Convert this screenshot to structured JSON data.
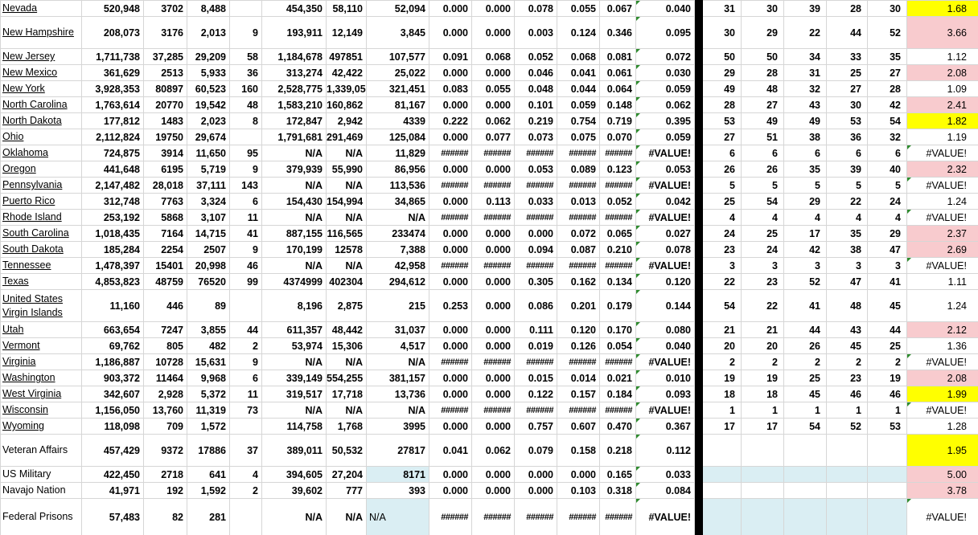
{
  "palette": {
    "highlight_yellow": "#FFFF00",
    "highlight_pink": "#F8CBCE",
    "highlight_blue": "#DAEEF3",
    "separator_black": "#000000",
    "gridline": "#D6D6D6",
    "error_green": "#2E8B2E"
  },
  "error_value": "#VALUE!",
  "overflow_value": "######",
  "rows": [
    {
      "state": "Nevada",
      "underline": true,
      "tall": false,
      "t_fill": "yellow",
      "values": [
        "520,948",
        "3702",
        "8,488",
        "",
        "454,350",
        "58,110",
        "52,094",
        "0.000",
        "0.000",
        "0.078",
        "0.055",
        "0.067",
        "0.040",
        "31",
        "30",
        "39",
        "28",
        "30",
        "1.68"
      ]
    },
    {
      "state": "New Hampshire",
      "underline": true,
      "tall": true,
      "t_fill": "pink",
      "values": [
        "208,073",
        "3176",
        "2,013",
        "9",
        "193,911",
        "12,149",
        "3,845",
        "0.000",
        "0.000",
        "0.003",
        "0.124",
        "0.346",
        "0.095",
        "30",
        "29",
        "22",
        "44",
        "52",
        "3.66"
      ]
    },
    {
      "state": "New Jersey",
      "underline": true,
      "tall": false,
      "t_fill": null,
      "values": [
        "1,711,738",
        "37,285",
        "29,209",
        "58",
        "1,184,678",
        "497851",
        "107,577",
        "0.091",
        "0.068",
        "0.052",
        "0.068",
        "0.081",
        "0.072",
        "50",
        "50",
        "34",
        "33",
        "35",
        "1.12"
      ]
    },
    {
      "state": "New Mexico",
      "underline": true,
      "tall": false,
      "t_fill": "pink",
      "values": [
        "361,629",
        "2513",
        "5,933",
        "36",
        "313,274",
        "42,422",
        "25,022",
        "0.000",
        "0.000",
        "0.046",
        "0.041",
        "0.061",
        "0.030",
        "29",
        "28",
        "31",
        "25",
        "27",
        "2.08"
      ]
    },
    {
      "state": "New York",
      "underline": true,
      "tall": false,
      "t_fill": null,
      "values": [
        "3,928,353",
        "80897",
        "60,523",
        "160",
        "2,528,775",
        "1,339,055",
        "321,451",
        "0.083",
        "0.055",
        "0.048",
        "0.044",
        "0.064",
        "0.059",
        "49",
        "48",
        "32",
        "27",
        "28",
        "1.09"
      ]
    },
    {
      "state": "North Carolina",
      "underline": true,
      "tall": false,
      "t_fill": "pink",
      "values": [
        "1,763,614",
        "20770",
        "19,542",
        "48",
        "1,583,210",
        "160,862",
        "81,167",
        "0.000",
        "0.000",
        "0.101",
        "0.059",
        "0.148",
        "0.062",
        "28",
        "27",
        "43",
        "30",
        "42",
        "2.41"
      ]
    },
    {
      "state": "North Dakota",
      "underline": true,
      "tall": false,
      "t_fill": "yellow",
      "values": [
        "177,812",
        "1483",
        "2,023",
        "8",
        "172,847",
        "2,942",
        "4339",
        "0.222",
        "0.062",
        "0.219",
        "0.754",
        "0.719",
        "0.395",
        "53",
        "49",
        "49",
        "53",
        "54",
        "1.82"
      ]
    },
    {
      "state": "Ohio",
      "underline": true,
      "tall": false,
      "t_fill": null,
      "values": [
        "2,112,824",
        "19750",
        "29,674",
        "",
        "1,791,681",
        "291,469",
        "125,084",
        "0.000",
        "0.077",
        "0.073",
        "0.075",
        "0.070",
        "0.059",
        "27",
        "51",
        "38",
        "36",
        "32",
        "1.19"
      ]
    },
    {
      "state": "Oklahoma",
      "underline": true,
      "tall": false,
      "t_fill": null,
      "values": [
        "724,875",
        "3914",
        "11,650",
        "95",
        "N/A",
        "N/A",
        "11,829",
        "######",
        "######",
        "######",
        "######",
        "######",
        "#VALUE!",
        "6",
        "6",
        "6",
        "6",
        "6",
        "#VALUE!"
      ]
    },
    {
      "state": "Oregon",
      "underline": true,
      "tall": false,
      "t_fill": "pink",
      "values": [
        "441,648",
        "6195",
        "5,719",
        "9",
        "379,939",
        "55,990",
        "86,956",
        "0.000",
        "0.000",
        "0.053",
        "0.089",
        "0.123",
        "0.053",
        "26",
        "26",
        "35",
        "39",
        "40",
        "2.32"
      ]
    },
    {
      "state": "Pennsylvania",
      "underline": true,
      "tall": false,
      "t_fill": null,
      "values": [
        "2,147,482",
        "28,018",
        "37,111",
        "143",
        "N/A",
        "N/A",
        "113,536",
        "######",
        "######",
        "######",
        "######",
        "######",
        "#VALUE!",
        "5",
        "5",
        "5",
        "5",
        "5",
        "#VALUE!"
      ]
    },
    {
      "state": "Puerto Rico",
      "underline": true,
      "tall": false,
      "t_fill": null,
      "values": [
        "312,748",
        "7763",
        "3,324",
        "6",
        "154,430",
        "154,994",
        "34,865",
        "0.000",
        "0.113",
        "0.033",
        "0.013",
        "0.052",
        "0.042",
        "25",
        "54",
        "29",
        "22",
        "24",
        "1.24"
      ]
    },
    {
      "state": "Rhode Island",
      "underline": true,
      "tall": false,
      "t_fill": null,
      "values": [
        "253,192",
        "5868",
        "3,107",
        "11",
        "N/A",
        "N/A",
        "N/A",
        "######",
        "######",
        "######",
        "######",
        "######",
        "#VALUE!",
        "4",
        "4",
        "4",
        "4",
        "4",
        "#VALUE!"
      ]
    },
    {
      "state": "South Carolina",
      "underline": true,
      "tall": false,
      "t_fill": "pink",
      "values": [
        "1,018,435",
        "7164",
        "14,715",
        "41",
        "887,155",
        "116,565",
        "233474",
        "0.000",
        "0.000",
        "0.000",
        "0.072",
        "0.065",
        "0.027",
        "24",
        "25",
        "17",
        "35",
        "29",
        "2.37"
      ]
    },
    {
      "state": "South Dakota",
      "underline": true,
      "tall": false,
      "t_fill": "pink",
      "values": [
        "185,284",
        "2254",
        "2507",
        "9",
        "170,199",
        "12578",
        "7,388",
        "0.000",
        "0.000",
        "0.094",
        "0.087",
        "0.210",
        "0.078",
        "23",
        "24",
        "42",
        "38",
        "47",
        "2.69"
      ]
    },
    {
      "state": "Tennessee",
      "underline": true,
      "tall": false,
      "t_fill": null,
      "values": [
        "1,478,397",
        "15401",
        "20,998",
        "46",
        "N/A",
        "N/A",
        "42,958",
        "######",
        "######",
        "######",
        "######",
        "######",
        "#VALUE!",
        "3",
        "3",
        "3",
        "3",
        "3",
        "#VALUE!"
      ]
    },
    {
      "state": "Texas",
      "underline": true,
      "tall": false,
      "t_fill": null,
      "values": [
        "4,853,823",
        "48759",
        "76520",
        "99",
        "4374999",
        "402304",
        "294,612",
        "0.000",
        "0.000",
        "0.305",
        "0.162",
        "0.134",
        "0.120",
        "22",
        "23",
        "52",
        "47",
        "41",
        "1.11"
      ]
    },
    {
      "state": "United States Virgin Islands",
      "underline": true,
      "tall": true,
      "t_fill": null,
      "values": [
        "11,160",
        "446",
        "89",
        "",
        "8,196",
        "2,875",
        "215",
        "0.253",
        "0.000",
        "0.086",
        "0.201",
        "0.179",
        "0.144",
        "54",
        "22",
        "41",
        "48",
        "45",
        "1.24"
      ]
    },
    {
      "state": "Utah",
      "underline": true,
      "tall": false,
      "t_fill": "pink",
      "values": [
        "663,654",
        "7247",
        "3,855",
        "44",
        "611,357",
        "48,442",
        "31,037",
        "0.000",
        "0.000",
        "0.111",
        "0.120",
        "0.170",
        "0.080",
        "21",
        "21",
        "44",
        "43",
        "44",
        "2.12"
      ]
    },
    {
      "state": "Vermont",
      "underline": true,
      "tall": false,
      "t_fill": null,
      "values": [
        "69,762",
        "805",
        "482",
        "2",
        "53,974",
        "15,306",
        "4,517",
        "0.000",
        "0.000",
        "0.019",
        "0.126",
        "0.054",
        "0.040",
        "20",
        "20",
        "26",
        "45",
        "25",
        "1.36"
      ]
    },
    {
      "state": "Virginia",
      "underline": true,
      "tall": false,
      "t_fill": null,
      "values": [
        "1,186,887",
        "10728",
        "15,631",
        "9",
        "N/A",
        "N/A",
        "N/A",
        "######",
        "######",
        "######",
        "######",
        "######",
        "#VALUE!",
        "2",
        "2",
        "2",
        "2",
        "2",
        "#VALUE!"
      ]
    },
    {
      "state": "Washington",
      "underline": true,
      "tall": false,
      "t_fill": "pink",
      "values": [
        "903,372",
        "11464",
        "9,968",
        "6",
        "339,149",
        "554,255",
        "381,157",
        "0.000",
        "0.000",
        "0.015",
        "0.014",
        "0.021",
        "0.010",
        "19",
        "19",
        "25",
        "23",
        "19",
        "2.08"
      ]
    },
    {
      "state": "West Virginia",
      "underline": true,
      "tall": false,
      "t_fill": "yellow",
      "values": [
        "342,607",
        "2,928",
        "5,372",
        "11",
        "319,517",
        "17,718",
        "13,736",
        "0.000",
        "0.000",
        "0.122",
        "0.157",
        "0.184",
        "0.093",
        "18",
        "18",
        "45",
        "46",
        "46",
        "1.99"
      ]
    },
    {
      "state": "Wisconsin",
      "underline": true,
      "tall": false,
      "t_fill": null,
      "values": [
        "1,156,050",
        "13,760",
        "11,319",
        "73",
        "N/A",
        "N/A",
        "N/A",
        "######",
        "######",
        "######",
        "######",
        "######",
        "#VALUE!",
        "1",
        "1",
        "1",
        "1",
        "1",
        "#VALUE!"
      ]
    },
    {
      "state": "Wyoming",
      "underline": true,
      "tall": false,
      "t_fill": null,
      "values": [
        "118,098",
        "709",
        "1,572",
        "",
        "114,758",
        "1,768",
        "3995",
        "0.000",
        "0.000",
        "0.757",
        "0.607",
        "0.470",
        "0.367",
        "17",
        "17",
        "54",
        "52",
        "53",
        "1.28"
      ]
    },
    {
      "state": "Veteran Affairs",
      "underline": false,
      "tall": true,
      "t_fill": "yellow",
      "values": [
        "457,429",
        "9372",
        "17886",
        "37",
        "389,011",
        "50,532",
        "27817",
        "0.041",
        "0.062",
        "0.079",
        "0.158",
        "0.218",
        "0.112",
        "",
        "",
        "",
        "",
        "",
        "1.95"
      ]
    },
    {
      "state": "US Military",
      "underline": false,
      "tall": false,
      "t_fill": "pink",
      "h_fill": "blue",
      "ranks_fill": "blue",
      "values": [
        "422,450",
        "2718",
        "641",
        "4",
        "394,605",
        "27,204",
        "8171",
        "0.000",
        "0.000",
        "0.000",
        "0.000",
        "0.165",
        "0.033",
        "",
        "",
        "",
        "",
        "",
        "5.00"
      ]
    },
    {
      "state": "Navajo Nation",
      "underline": false,
      "tall": false,
      "t_fill": "pink",
      "values": [
        "41,971",
        "192",
        "1,592",
        "2",
        "39,602",
        "777",
        "393",
        "0.000",
        "0.000",
        "0.000",
        "0.103",
        "0.318",
        "0.084",
        "",
        "",
        "",
        "",
        "",
        "3.78"
      ]
    },
    {
      "state": "Federal Prisons",
      "underline": false,
      "tall": true,
      "xtall": true,
      "t_fill": null,
      "h_fill": "blue",
      "h_left": true,
      "ranks_fill": "blue",
      "values": [
        "57,483",
        "82",
        "281",
        "",
        "N/A",
        "N/A",
        "N/A",
        "######",
        "######",
        "######",
        "######",
        "######",
        "#VALUE!",
        "",
        "",
        "",
        "",
        "",
        "#VALUE!"
      ]
    }
  ]
}
